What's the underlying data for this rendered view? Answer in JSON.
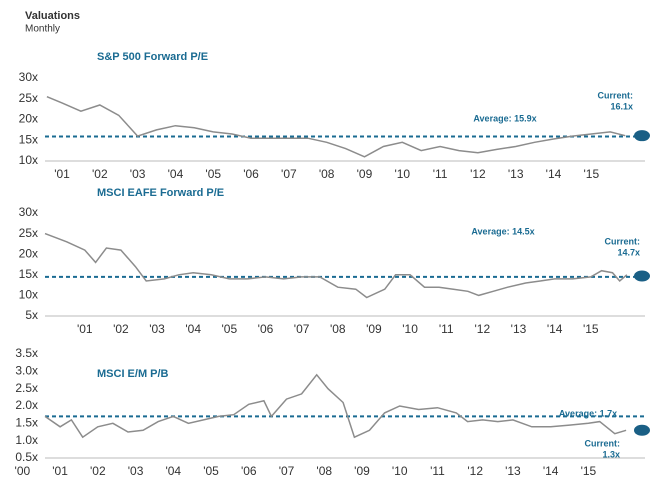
{
  "title": "Valuations",
  "subtitle": "Monthly",
  "chart_data": [
    {
      "type": "line",
      "title": "S&P 500 Forward P/E",
      "color": "#8c8c8c",
      "average_color": "#1a6b92",
      "x": [
        2000.6,
        2001.0,
        2001.5,
        2002.0,
        2002.5,
        2003.0,
        2003.5,
        2004.0,
        2004.5,
        2005.0,
        2005.5,
        2006.0,
        2006.5,
        2007.0,
        2007.5,
        2008.0,
        2008.5,
        2009.0,
        2009.5,
        2010.0,
        2010.5,
        2011.0,
        2011.5,
        2012.0,
        2012.5,
        2013.0,
        2013.5,
        2014.0,
        2014.5,
        2015.0,
        2015.5,
        2015.9
      ],
      "values": [
        25.5,
        24,
        22,
        23.5,
        21,
        16,
        17.5,
        18.5,
        18,
        17,
        16.5,
        15.5,
        15.5,
        15.5,
        15.5,
        14.5,
        13,
        11,
        13.5,
        14.5,
        12.5,
        13.5,
        12.5,
        12,
        12.8,
        13.5,
        14.5,
        15.3,
        16,
        16.5,
        17,
        16.1
      ],
      "average": 15.9,
      "average_label": "Average: 15.9x",
      "current": 16.1,
      "current_label": "Current:",
      "current_value_label": "16.1x",
      "xlim": [
        2000.55,
        2016.42
      ],
      "xticks": [
        {
          "value": 2001,
          "label": "'01"
        },
        {
          "value": 2002,
          "label": "'02"
        },
        {
          "value": 2003,
          "label": "'03"
        },
        {
          "value": 2004,
          "label": "'04"
        },
        {
          "value": 2005,
          "label": "'05"
        },
        {
          "value": 2006,
          "label": "'06"
        },
        {
          "value": 2007,
          "label": "'07"
        },
        {
          "value": 2008,
          "label": "'08"
        },
        {
          "value": 2009,
          "label": "'09"
        },
        {
          "value": 2010,
          "label": "'10"
        },
        {
          "value": 2011,
          "label": "'11"
        },
        {
          "value": 2012,
          "label": "'12"
        },
        {
          "value": 2013,
          "label": "'13"
        },
        {
          "value": 2014,
          "label": "'14"
        },
        {
          "value": 2015,
          "label": "'15"
        }
      ],
      "ylim": [
        10,
        30
      ],
      "yticks": [
        {
          "value": 10,
          "label": "10x"
        },
        {
          "value": 15,
          "label": "15x"
        },
        {
          "value": 20,
          "label": "20x"
        },
        {
          "value": 25,
          "label": "25x"
        },
        {
          "value": 30,
          "label": "30x"
        }
      ]
    },
    {
      "type": "line",
      "title": "MSCI EAFE Forward P/E",
      "color": "#8c8c8c",
      "average_color": "#1a6b92",
      "x": [
        1999.9,
        2000.5,
        2001.0,
        2001.3,
        2001.6,
        2002.0,
        2002.4,
        2002.7,
        2003.2,
        2003.6,
        2004.0,
        2004.5,
        2005.0,
        2005.5,
        2006.0,
        2006.5,
        2007.0,
        2007.5,
        2008.0,
        2008.5,
        2008.8,
        2009.3,
        2009.6,
        2010.0,
        2010.4,
        2010.8,
        2011.2,
        2011.6,
        2011.9,
        2012.3,
        2012.7,
        2013.2,
        2013.6,
        2014.0,
        2014.5,
        2015.0,
        2015.3,
        2015.6,
        2015.8,
        2016.0
      ],
      "values": [
        25,
        23,
        21,
        18,
        21.5,
        21,
        17,
        13.5,
        14,
        15,
        15.5,
        15,
        14,
        14,
        14.5,
        14,
        14.5,
        14.5,
        12,
        11.5,
        9.5,
        11.5,
        15,
        15,
        12,
        12,
        11.5,
        11,
        10,
        11,
        12,
        13,
        13.5,
        14,
        14,
        14.5,
        16,
        15.5,
        13.5,
        15
      ],
      "average": 14.5,
      "average_label": "Average: 14.5x",
      "current": 14.7,
      "current_label": "Current:",
      "current_value_label": "14.7x",
      "xlim": [
        1999.9,
        2016.5
      ],
      "xticks": [
        {
          "value": 2001,
          "label": "'01"
        },
        {
          "value": 2002,
          "label": "'02"
        },
        {
          "value": 2003,
          "label": "'03"
        },
        {
          "value": 2004,
          "label": "'04"
        },
        {
          "value": 2005,
          "label": "'05"
        },
        {
          "value": 2006,
          "label": "'06"
        },
        {
          "value": 2007,
          "label": "'07"
        },
        {
          "value": 2008,
          "label": "'08"
        },
        {
          "value": 2009,
          "label": "'09"
        },
        {
          "value": 2010,
          "label": "'10"
        },
        {
          "value": 2011,
          "label": "'11"
        },
        {
          "value": 2012,
          "label": "'12"
        },
        {
          "value": 2013,
          "label": "'13"
        },
        {
          "value": 2014,
          "label": "'14"
        },
        {
          "value": 2015,
          "label": "'15"
        }
      ],
      "ylim": [
        5,
        30
      ],
      "yticks": [
        {
          "value": 5,
          "label": "5x"
        },
        {
          "value": 10,
          "label": "10x"
        },
        {
          "value": 15,
          "label": "15x"
        },
        {
          "value": 20,
          "label": "20x"
        },
        {
          "value": 25,
          "label": "25x"
        },
        {
          "value": 30,
          "label": "30x"
        }
      ]
    },
    {
      "type": "line",
      "title": "MSCI E/M P/B",
      "color": "#8c8c8c",
      "average_color": "#1a6b92",
      "x": [
        2000.6,
        2001.0,
        2001.3,
        2001.6,
        2002.0,
        2002.4,
        2002.8,
        2003.2,
        2003.6,
        2004.0,
        2004.4,
        2004.8,
        2005.2,
        2005.6,
        2006.0,
        2006.4,
        2006.6,
        2007.0,
        2007.4,
        2007.8,
        2008.1,
        2008.5,
        2008.8,
        2009.2,
        2009.6,
        2010.0,
        2010.5,
        2011.0,
        2011.5,
        2011.8,
        2012.2,
        2012.6,
        2013.0,
        2013.5,
        2014.0,
        2014.5,
        2015.0,
        2015.3,
        2015.7,
        2016.0
      ],
      "values": [
        1.7,
        1.4,
        1.6,
        1.1,
        1.4,
        1.5,
        1.25,
        1.3,
        1.55,
        1.7,
        1.5,
        1.6,
        1.7,
        1.75,
        2.05,
        2.15,
        1.7,
        2.2,
        2.35,
        2.9,
        2.5,
        2.1,
        1.1,
        1.3,
        1.8,
        2.0,
        1.9,
        1.95,
        1.8,
        1.55,
        1.6,
        1.55,
        1.6,
        1.4,
        1.4,
        1.45,
        1.5,
        1.55,
        1.2,
        1.3
      ],
      "average": 1.7,
      "average_label": "Average: 1.7x",
      "current": 1.3,
      "current_label": "Current:",
      "current_value_label": "1.3x",
      "xlim": [
        2000.6,
        2016.5
      ],
      "xticks": [
        {
          "value": 2000,
          "label": "'00"
        },
        {
          "value": 2001,
          "label": "'01"
        },
        {
          "value": 2002,
          "label": "'02"
        },
        {
          "value": 2003,
          "label": "'03"
        },
        {
          "value": 2004,
          "label": "'04"
        },
        {
          "value": 2005,
          "label": "'05"
        },
        {
          "value": 2006,
          "label": "'06"
        },
        {
          "value": 2007,
          "label": "'07"
        },
        {
          "value": 2008,
          "label": "'08"
        },
        {
          "value": 2009,
          "label": "'09"
        },
        {
          "value": 2010,
          "label": "'10"
        },
        {
          "value": 2011,
          "label": "'11"
        },
        {
          "value": 2012,
          "label": "'12"
        },
        {
          "value": 2013,
          "label": "'13"
        },
        {
          "value": 2014,
          "label": "'14"
        },
        {
          "value": 2015,
          "label": "'15"
        }
      ],
      "ylim": [
        0.5,
        3.5
      ],
      "yticks": [
        {
          "value": 0.5,
          "label": "0.5x"
        },
        {
          "value": 1.0,
          "label": "1.0x"
        },
        {
          "value": 1.5,
          "label": "1.5x"
        },
        {
          "value": 2.0,
          "label": "2.0x"
        },
        {
          "value": 2.5,
          "label": "2.5x"
        },
        {
          "value": 3.0,
          "label": "3.0x"
        },
        {
          "value": 3.5,
          "label": "3.5x"
        }
      ]
    }
  ]
}
